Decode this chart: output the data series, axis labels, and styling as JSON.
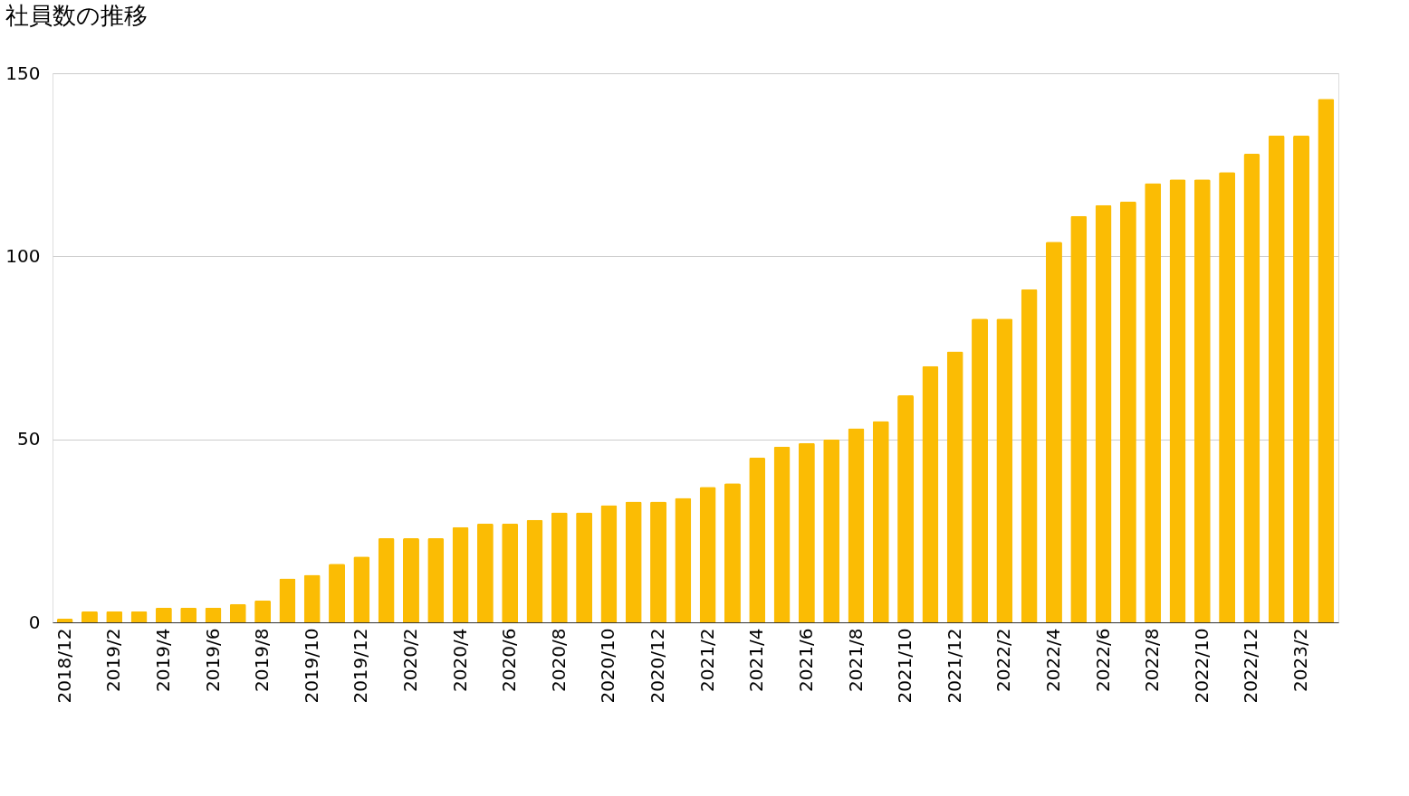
{
  "chart_data": {
    "type": "bar",
    "title": "社員数の推移",
    "categories": [
      "2018/12",
      null,
      "2019/2",
      null,
      "2019/4",
      null,
      "2019/6",
      null,
      "2019/8",
      null,
      "2019/10",
      null,
      "2019/12",
      null,
      "2020/2",
      null,
      "2020/4",
      null,
      "2020/6",
      null,
      "2020/8",
      null,
      "2020/10",
      null,
      "2020/12",
      null,
      "2021/2",
      null,
      "2021/4",
      null,
      "2021/6",
      null,
      "2021/8",
      null,
      "2021/10",
      null,
      "2021/12",
      null,
      "2022/2",
      null,
      "2022/4",
      null,
      "2022/6",
      null,
      "2022/8",
      null,
      "2022/10",
      null,
      "2022/12",
      null,
      "2023/2",
      null
    ],
    "values": [
      1,
      3,
      3,
      3,
      4,
      4,
      4,
      5,
      6,
      12,
      13,
      16,
      18,
      23,
      23,
      23,
      26,
      27,
      27,
      28,
      30,
      30,
      32,
      33,
      33,
      34,
      37,
      38,
      45,
      48,
      49,
      50,
      53,
      55,
      62,
      70,
      74,
      83,
      83,
      91,
      104,
      111,
      114,
      115,
      120,
      121,
      121,
      123,
      128,
      133,
      133,
      143
    ],
    "color": "#fbbc04",
    "ylim": [
      0,
      150
    ],
    "yticks": [
      0,
      50,
      100,
      150
    ],
    "grid": "y"
  }
}
